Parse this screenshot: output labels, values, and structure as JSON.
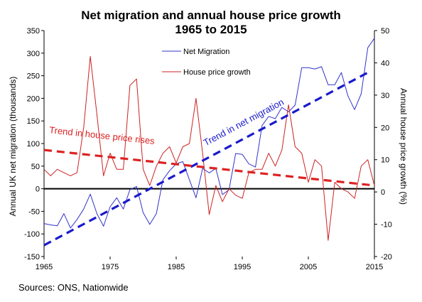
{
  "chart_data": {
    "type": "line",
    "title": "Net migration and annual house price growth",
    "subtitle": "1965 to 2015",
    "ylabel_left": "Annual UK net migration (thousands)",
    "ylabel_right": "Annual house price growth (%)",
    "source": "Sources: ONS, Nationwide",
    "x": [
      1965,
      1966,
      1967,
      1968,
      1969,
      1970,
      1971,
      1972,
      1973,
      1974,
      1975,
      1976,
      1977,
      1978,
      1979,
      1980,
      1981,
      1982,
      1983,
      1984,
      1985,
      1986,
      1987,
      1988,
      1989,
      1990,
      1991,
      1992,
      1993,
      1994,
      1995,
      1996,
      1997,
      1998,
      1999,
      2000,
      2001,
      2002,
      2003,
      2004,
      2005,
      2006,
      2007,
      2008,
      2009,
      2010,
      2011,
      2012,
      2013,
      2014,
      2015
    ],
    "x_ticks": [
      1965,
      1975,
      1985,
      1995,
      2005,
      2015
    ],
    "xlim": [
      1965,
      2015
    ],
    "y_left_ticks": [
      -150,
      -100,
      -50,
      0,
      50,
      100,
      150,
      200,
      250,
      300,
      350
    ],
    "ylim_left": [
      -150,
      350
    ],
    "y_right_ticks": [
      -20,
      -10,
      0,
      10,
      20,
      30,
      40,
      50
    ],
    "ylim_right": [
      -20,
      50
    ],
    "series": [
      {
        "name": "Net Migration",
        "axis": "left",
        "color": "#3333cc",
        "values": [
          -77,
          -80,
          -82,
          -55,
          -87,
          -68,
          -45,
          -12,
          -55,
          -83,
          -40,
          -20,
          -45,
          -2,
          5,
          -53,
          -79,
          -55,
          20,
          40,
          55,
          60,
          20,
          -20,
          45,
          35,
          45,
          -13,
          -2,
          78,
          76,
          55,
          48,
          140,
          160,
          155,
          180,
          170,
          185,
          268,
          268,
          265,
          270,
          230,
          230,
          257,
          205,
          175,
          210,
          312,
          333
        ]
      },
      {
        "name": "House price growth",
        "axis": "right",
        "color": "#cc2222",
        "values": [
          7,
          5,
          7,
          6,
          5,
          6,
          20,
          42,
          24,
          5,
          12,
          7,
          7,
          33,
          35,
          7,
          2,
          8,
          12,
          14,
          9,
          14,
          15,
          29,
          12,
          -7,
          2,
          -3,
          1,
          -1,
          -2,
          6,
          7,
          7,
          12,
          8,
          13,
          27,
          14,
          12,
          3,
          10,
          8,
          -15,
          3,
          1,
          0,
          -2,
          8,
          10,
          2
        ]
      }
    ],
    "trends": [
      {
        "label": "Trend in net migration",
        "axis": "left",
        "color": "#1a1acc",
        "x": [
          1965,
          2014
        ],
        "y": [
          -125,
          257
        ]
      },
      {
        "label": "Trend in house price rises",
        "axis": "right",
        "color": "#dd2222",
        "x": [
          1965,
          2015
        ],
        "y": [
          13,
          2
        ]
      }
    ],
    "legend_position": "top-center",
    "grid": false
  }
}
